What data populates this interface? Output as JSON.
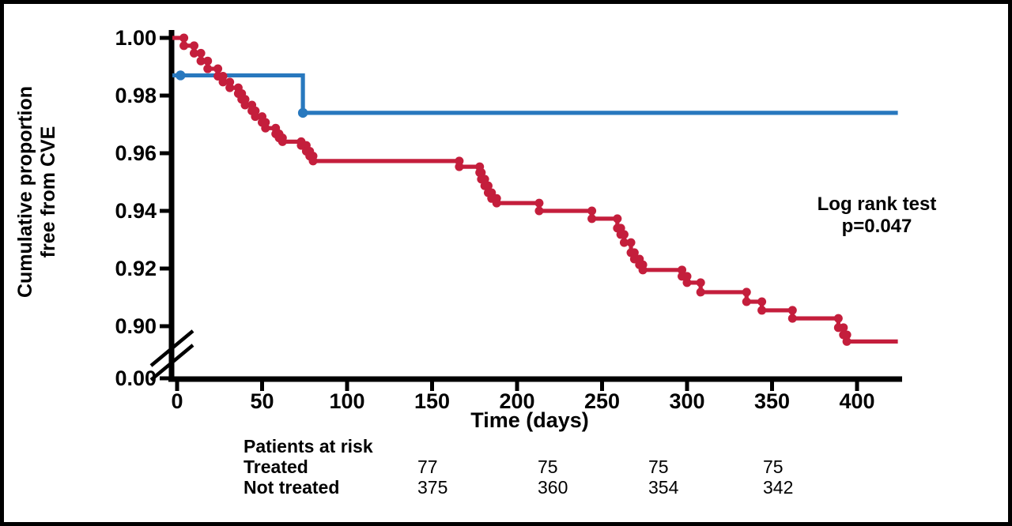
{
  "chart_data": {
    "type": "line",
    "subtype": "kaplan-meier-step",
    "title": "",
    "x_axis": {
      "label": "Time (days)",
      "ticks": [
        0,
        50,
        100,
        150,
        200,
        250,
        300,
        350,
        400
      ],
      "range": [
        0,
        426
      ],
      "grid": false
    },
    "y_axis": {
      "label_lines": [
        "Cumulative proportion",
        "free from CVE"
      ],
      "ticks": [
        "1.00",
        "0.98",
        "0.96",
        "0.94",
        "0.92",
        "0.90"
      ],
      "zero_tick": "0.00",
      "axis_break": true,
      "shown_range": [
        0.888,
        1.0
      ]
    },
    "annotation": {
      "line1": "Log rank test",
      "line2": "p=0.047"
    },
    "legend_position": "none",
    "series": [
      {
        "name": "Treated",
        "color": "#2878be",
        "marker_mode": "list",
        "markers": [
          [
            2,
            0.987
          ],
          [
            74,
            0.974
          ]
        ],
        "steps": [
          [
            0,
            0.987
          ],
          [
            74,
            0.974
          ],
          [
            424,
            0.974
          ]
        ]
      },
      {
        "name": "Not treated",
        "color": "#c41e3c",
        "marker_mode": "corners",
        "steps": [
          [
            0,
            1.0
          ],
          [
            4,
            0.9973
          ],
          [
            10,
            0.9947
          ],
          [
            14,
            0.992
          ],
          [
            18,
            0.9893
          ],
          [
            24,
            0.9867
          ],
          [
            27,
            0.9847
          ],
          [
            31,
            0.9827
          ],
          [
            36,
            0.9807
          ],
          [
            38,
            0.9787
          ],
          [
            40,
            0.9767
          ],
          [
            44,
            0.9747
          ],
          [
            46,
            0.9727
          ],
          [
            50,
            0.9707
          ],
          [
            52,
            0.9687
          ],
          [
            58,
            0.9667
          ],
          [
            60,
            0.9653
          ],
          [
            62,
            0.964
          ],
          [
            73,
            0.9627
          ],
          [
            76,
            0.9607
          ],
          [
            78,
            0.959
          ],
          [
            80,
            0.9573
          ],
          [
            166,
            0.9553
          ],
          [
            178,
            0.9533
          ],
          [
            179,
            0.951
          ],
          [
            181,
            0.9487
          ],
          [
            183,
            0.9463
          ],
          [
            185,
            0.9443
          ],
          [
            188,
            0.9427
          ],
          [
            213,
            0.94
          ],
          [
            244,
            0.9373
          ],
          [
            259,
            0.934
          ],
          [
            261,
            0.9318
          ],
          [
            263,
            0.929
          ],
          [
            267,
            0.9255
          ],
          [
            269,
            0.9233
          ],
          [
            272,
            0.9213
          ],
          [
            274,
            0.9195
          ],
          [
            297,
            0.9173
          ],
          [
            300,
            0.9151
          ],
          [
            308,
            0.9118
          ],
          [
            335,
            0.9085
          ],
          [
            344,
            0.9055
          ],
          [
            362,
            0.9027
          ],
          [
            389,
            0.8995
          ],
          [
            392,
            0.897
          ],
          [
            394,
            0.8947
          ],
          [
            424,
            0.8947
          ]
        ]
      }
    ]
  },
  "risk_table": {
    "title": "Patients at risk",
    "rows": [
      {
        "label": "Treated",
        "values": [
          "77",
          "75",
          "75",
          "75"
        ]
      },
      {
        "label": "Not treated",
        "values": [
          "375",
          "360",
          "354",
          "342"
        ]
      }
    ]
  }
}
